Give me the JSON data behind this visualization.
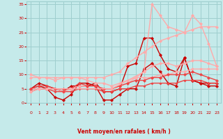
{
  "xlabel": "Vent moyen/en rafales ( km/h )",
  "xlim": [
    -0.5,
    23.5
  ],
  "ylim": [
    0,
    36
  ],
  "yticks": [
    0,
    5,
    10,
    15,
    20,
    25,
    30,
    35
  ],
  "xticks": [
    0,
    1,
    2,
    3,
    4,
    5,
    6,
    7,
    8,
    9,
    10,
    11,
    12,
    13,
    14,
    15,
    16,
    17,
    18,
    19,
    20,
    21,
    22,
    23
  ],
  "bg_color": "#c5eaea",
  "grid_color": "#9ecece",
  "lines": [
    {
      "x": [
        0,
        1,
        2,
        3,
        4,
        5,
        6,
        7,
        8,
        9,
        10,
        11,
        12,
        13,
        14,
        15,
        16,
        17,
        18,
        19,
        20,
        21,
        22,
        23
      ],
      "y": [
        5,
        7,
        6,
        5,
        4,
        6,
        6,
        6,
        7,
        4,
        4,
        5,
        13,
        14,
        23,
        23,
        17,
        12,
        11,
        16,
        8,
        7,
        7,
        7
      ],
      "color": "#cc0000",
      "lw": 1.0,
      "marker": "D",
      "ms": 2.0
    },
    {
      "x": [
        0,
        1,
        2,
        3,
        4,
        5,
        6,
        7,
        8,
        9,
        10,
        11,
        12,
        13,
        14,
        15,
        16,
        17,
        18,
        19,
        20,
        21,
        22,
        23
      ],
      "y": [
        5,
        6,
        5,
        2,
        1,
        3,
        7,
        7,
        6,
        1,
        1,
        3,
        5,
        5,
        12,
        14,
        11,
        7,
        6,
        16,
        8,
        7,
        6,
        6
      ],
      "color": "#cc0000",
      "lw": 1.0,
      "marker": "P",
      "ms": 2.5
    },
    {
      "x": [
        0,
        1,
        2,
        3,
        4,
        5,
        6,
        7,
        8,
        9,
        10,
        11,
        12,
        13,
        14,
        15,
        16,
        17,
        18,
        19,
        20,
        21,
        22,
        23
      ],
      "y": [
        9,
        9,
        9,
        9,
        9,
        9,
        9,
        9,
        9,
        9,
        10,
        11,
        14,
        16,
        18,
        20,
        22,
        23,
        24,
        25,
        26,
        27,
        27,
        27
      ],
      "color": "#ffaaaa",
      "lw": 1.0,
      "marker": "D",
      "ms": 2.0
    },
    {
      "x": [
        0,
        1,
        2,
        3,
        4,
        5,
        6,
        7,
        8,
        9,
        10,
        11,
        12,
        13,
        14,
        15,
        16,
        17,
        18,
        19,
        20,
        21,
        22,
        23
      ],
      "y": [
        5,
        5,
        5,
        5,
        4,
        5,
        6,
        6,
        6,
        5,
        5,
        6,
        7,
        9,
        11,
        13,
        14,
        14,
        13,
        14,
        15,
        15,
        14,
        13
      ],
      "color": "#ffaaaa",
      "lw": 1.0,
      "marker": "D",
      "ms": 2.0
    },
    {
      "x": [
        0,
        1,
        2,
        3,
        4,
        5,
        6,
        7,
        8,
        9,
        10,
        11,
        12,
        13,
        14,
        15,
        16,
        17,
        18,
        19,
        20,
        21,
        22,
        23
      ],
      "y": [
        10,
        9,
        9,
        8,
        9,
        9,
        9,
        8,
        7,
        7,
        6,
        7,
        8,
        9,
        9,
        9,
        10,
        10,
        11,
        11,
        12,
        12,
        12,
        12
      ],
      "color": "#ffaaaa",
      "lw": 1.0,
      "marker": "D",
      "ms": 2.0
    },
    {
      "x": [
        0,
        1,
        2,
        3,
        4,
        5,
        6,
        7,
        8,
        9,
        10,
        11,
        12,
        13,
        14,
        15,
        16,
        17,
        18,
        19,
        20,
        21,
        22,
        23
      ],
      "y": [
        5,
        6,
        6,
        5,
        5,
        5,
        7,
        6,
        6,
        5,
        5,
        6,
        7,
        8,
        8,
        9,
        9,
        10,
        10,
        10,
        11,
        10,
        9,
        8
      ],
      "color": "#ee4444",
      "lw": 1.0,
      "marker": "D",
      "ms": 2.0
    },
    {
      "x": [
        0,
        1,
        2,
        3,
        4,
        5,
        6,
        7,
        8,
        9,
        10,
        11,
        12,
        13,
        14,
        15,
        16,
        17,
        18,
        19,
        20,
        21,
        22,
        23
      ],
      "y": [
        4,
        5,
        5,
        4,
        4,
        4,
        5,
        5,
        5,
        4,
        4,
        5,
        5,
        6,
        6,
        7,
        7,
        7,
        7,
        8,
        8,
        8,
        7,
        7
      ],
      "color": "#ee4444",
      "lw": 1.0,
      "marker": "D",
      "ms": 1.5
    },
    {
      "x": [
        0,
        1,
        2,
        5,
        10,
        14,
        15,
        16,
        17,
        18,
        19,
        20,
        21,
        22,
        23
      ],
      "y": [
        4,
        5,
        5,
        5,
        5,
        11,
        35,
        31,
        27,
        26,
        25,
        31,
        28,
        21,
        13
      ],
      "color": "#ffaaaa",
      "lw": 1.0,
      "marker": "D",
      "ms": 2.0
    }
  ],
  "arrows": [
    "↑",
    "↑",
    "↓",
    "↓",
    "←",
    "←",
    "↖",
    "↑",
    "→",
    "→",
    "→",
    "→",
    "→",
    "→",
    "→",
    "→",
    "→",
    "→",
    "↗",
    "↖",
    "↓",
    "←",
    "→",
    "←"
  ]
}
